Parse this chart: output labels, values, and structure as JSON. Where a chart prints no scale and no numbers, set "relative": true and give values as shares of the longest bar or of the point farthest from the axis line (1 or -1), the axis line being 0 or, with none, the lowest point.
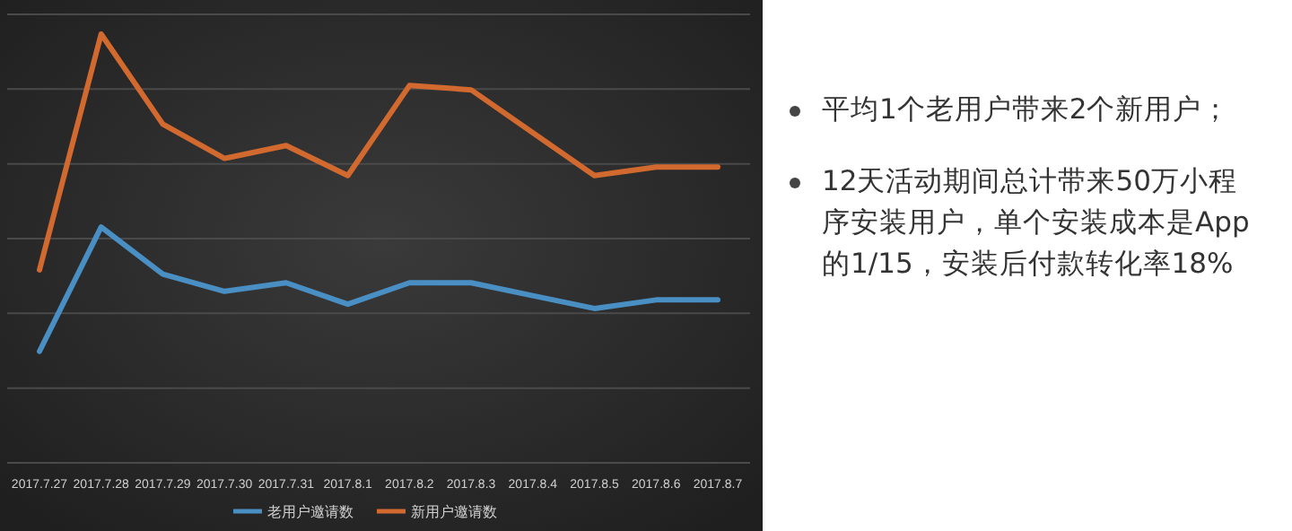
{
  "chart_data": [
    {
      "type": "line",
      "relative": true,
      "categories": [
        "2017.7.27",
        "2017.7.28",
        "2017.7.29",
        "2017.7.30",
        "2017.7.31",
        "2017.8.1",
        "2017.8.2",
        "2017.8.3",
        "2017.8.4",
        "2017.8.5",
        "2017.8.6",
        "2017.8.7"
      ],
      "series": [
        {
          "name": "老用户邀请数",
          "color": "#4a8fc4",
          "values": [
            0.26,
            0.55,
            0.44,
            0.4,
            0.42,
            0.37,
            0.42,
            0.42,
            0.39,
            0.36,
            0.38,
            0.38
          ]
        },
        {
          "name": "新用户邀请数",
          "color": "#d2692e",
          "values": [
            0.45,
            1,
            0.79,
            0.71,
            0.74,
            0.67,
            0.88,
            0.87,
            0.77,
            0.67,
            0.69,
            0.69
          ]
        }
      ],
      "grid": "y",
      "legend": "bottom",
      "marker": "none",
      "line_style": "solid"
    },
    {
      "type": "other",
      "annotations": [
        "平均1个老用户带来2个新用户；",
        "12天活动期间总计带来50万小程序安装用户，单个安装成本是App的1/15，安装后付款转化率18%"
      ]
    }
  ]
}
